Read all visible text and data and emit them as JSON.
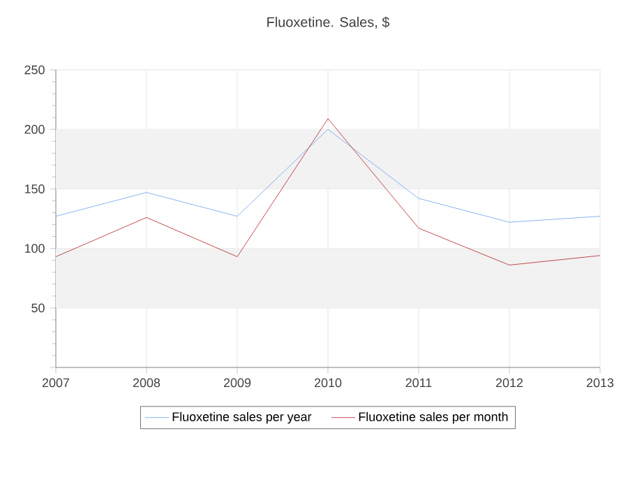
{
  "chart_data": {
    "type": "line",
    "title": "Fluoxetine. Sales, $",
    "x": [
      2007,
      2008,
      2009,
      2010,
      2011,
      2012,
      2013
    ],
    "series": [
      {
        "name": "Fluoxetine sales per year",
        "color": "#6f9ef0",
        "values": [
          127,
          147,
          127,
          200,
          142,
          122,
          127
        ]
      },
      {
        "name": "Fluoxetine sales per month",
        "color": "#b22222",
        "values": [
          93,
          126,
          93,
          209,
          117,
          86,
          94
        ]
      }
    ],
    "xlim": [
      2007,
      2013
    ],
    "xticks": [
      2007,
      2008,
      2009,
      2010,
      2011,
      2012,
      2013
    ],
    "ylim": [
      0,
      250
    ],
    "yticks": [
      {
        "value": 0,
        "label": null
      },
      50,
      100,
      150,
      200,
      250
    ],
    "bands": [
      {
        "axis": "y",
        "from": 50,
        "to": 100,
        "color": "#f2f2f2"
      },
      {
        "axis": "y",
        "from": 150,
        "to": 200,
        "color": "#f2f2f2"
      }
    ],
    "grid": true,
    "legend": "bottom",
    "marker": "none",
    "line_style": "solid"
  }
}
